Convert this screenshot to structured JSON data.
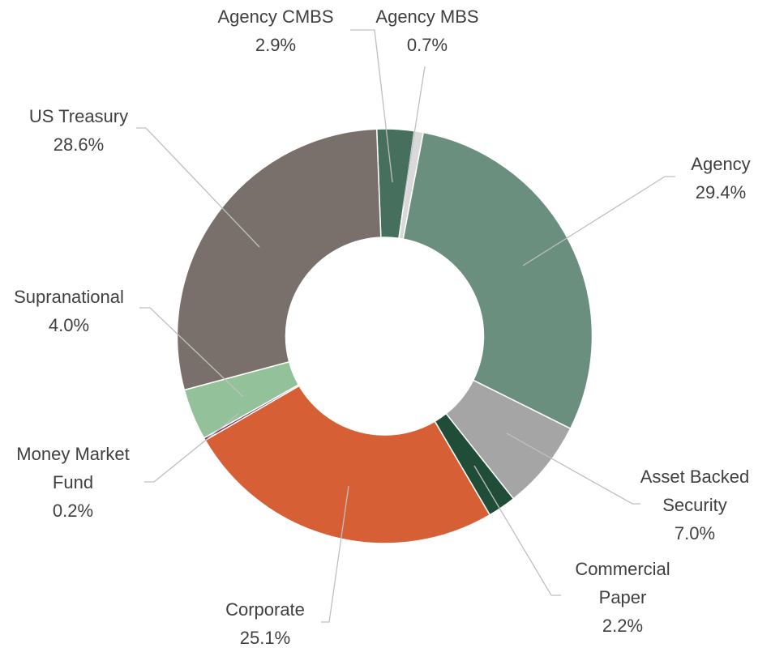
{
  "chart_data": {
    "type": "donut",
    "categories": [
      "Agency CMBS",
      "Agency MBS",
      "Agency",
      "Asset Backed Security",
      "Commercial Paper",
      "Corporate",
      "Money Market Fund",
      "Supranational",
      "US Treasury"
    ],
    "values": [
      2.9,
      0.7,
      29.4,
      7.0,
      2.2,
      25.1,
      0.2,
      4.0,
      28.6
    ],
    "value_labels": [
      "2.9%",
      "0.7%",
      "29.4%",
      "7.0%",
      "2.2%",
      "25.1%",
      "0.2%",
      "4.0%",
      "28.6%"
    ],
    "colors": [
      "#476f5e",
      "#d9d9d9",
      "#6a8f7e",
      "#a5a5a5",
      "#1f4d38",
      "#d75f35",
      "#7a1f4a",
      "#93c29a",
      "#7a706b"
    ]
  }
}
